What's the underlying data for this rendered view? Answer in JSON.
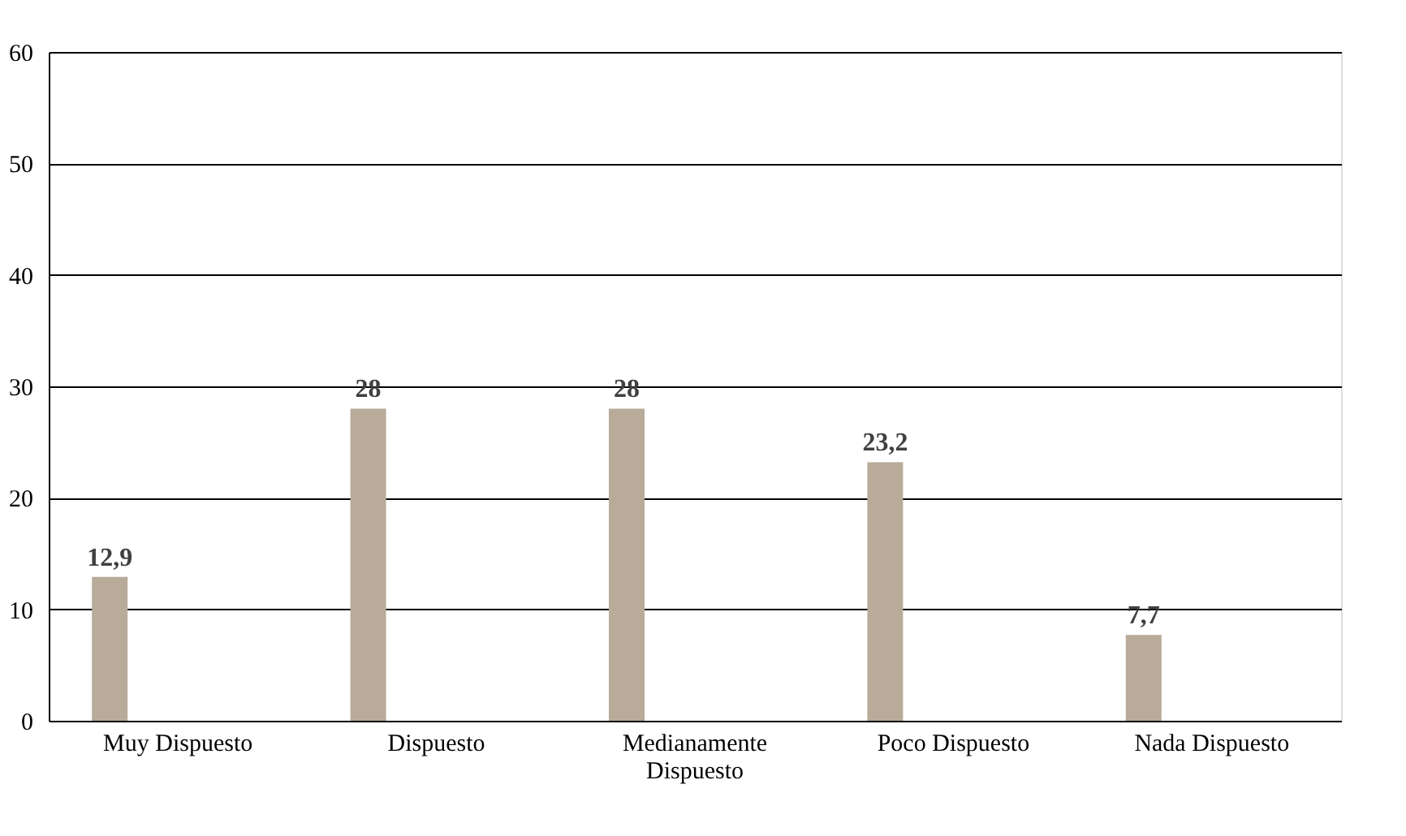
{
  "chart_data": {
    "type": "bar",
    "categories": [
      "Muy Dispuesto",
      "Dispuesto",
      "Medianamente Dispuesto",
      "Poco Dispuesto",
      "Nada Dispuesto"
    ],
    "values": [
      12.9,
      28,
      28,
      23.2,
      7.7
    ],
    "value_labels": [
      "12,9",
      "28",
      "28",
      "23,2",
      "7,7"
    ],
    "color": "#b8ab9a",
    "ylim": [
      0,
      60
    ],
    "yticks": [
      0,
      10,
      20,
      30,
      40,
      50,
      60
    ],
    "grid": "y"
  }
}
